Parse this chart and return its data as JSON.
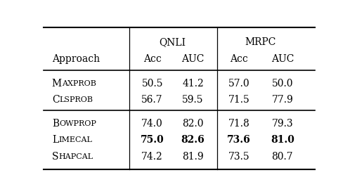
{
  "col_headers_level1_left": "QNLI",
  "col_headers_level1_right": "MRPC",
  "col_headers_level2": [
    "Approach",
    "Acc",
    "AUC",
    "Acc",
    "AUC"
  ],
  "rows": [
    {
      "name": [
        "M",
        "AXPROB"
      ],
      "values": [
        "50.5",
        "41.2",
        "57.0",
        "50.0"
      ],
      "bold": [
        false,
        false,
        false,
        false
      ]
    },
    {
      "name": [
        "C",
        "LSPROB"
      ],
      "values": [
        "56.7",
        "59.5",
        "71.5",
        "77.9"
      ],
      "bold": [
        false,
        false,
        false,
        false
      ]
    },
    {
      "name": [
        "B",
        "OWPROP"
      ],
      "values": [
        "74.0",
        "82.0",
        "71.8",
        "79.3"
      ],
      "bold": [
        false,
        false,
        false,
        false
      ]
    },
    {
      "name": [
        "L",
        "IMECAL"
      ],
      "values": [
        "75.0",
        "82.6",
        "73.6",
        "81.0"
      ],
      "bold": [
        true,
        true,
        true,
        true
      ]
    },
    {
      "name": [
        "S",
        "HAPCAL"
      ],
      "values": [
        "74.2",
        "81.9",
        "73.5",
        "80.7"
      ],
      "bold": [
        false,
        false,
        false,
        false
      ]
    }
  ],
  "background_color": "#ffffff",
  "text_color": "#000000",
  "font_size": 10.0,
  "small_font_size": 8.0
}
